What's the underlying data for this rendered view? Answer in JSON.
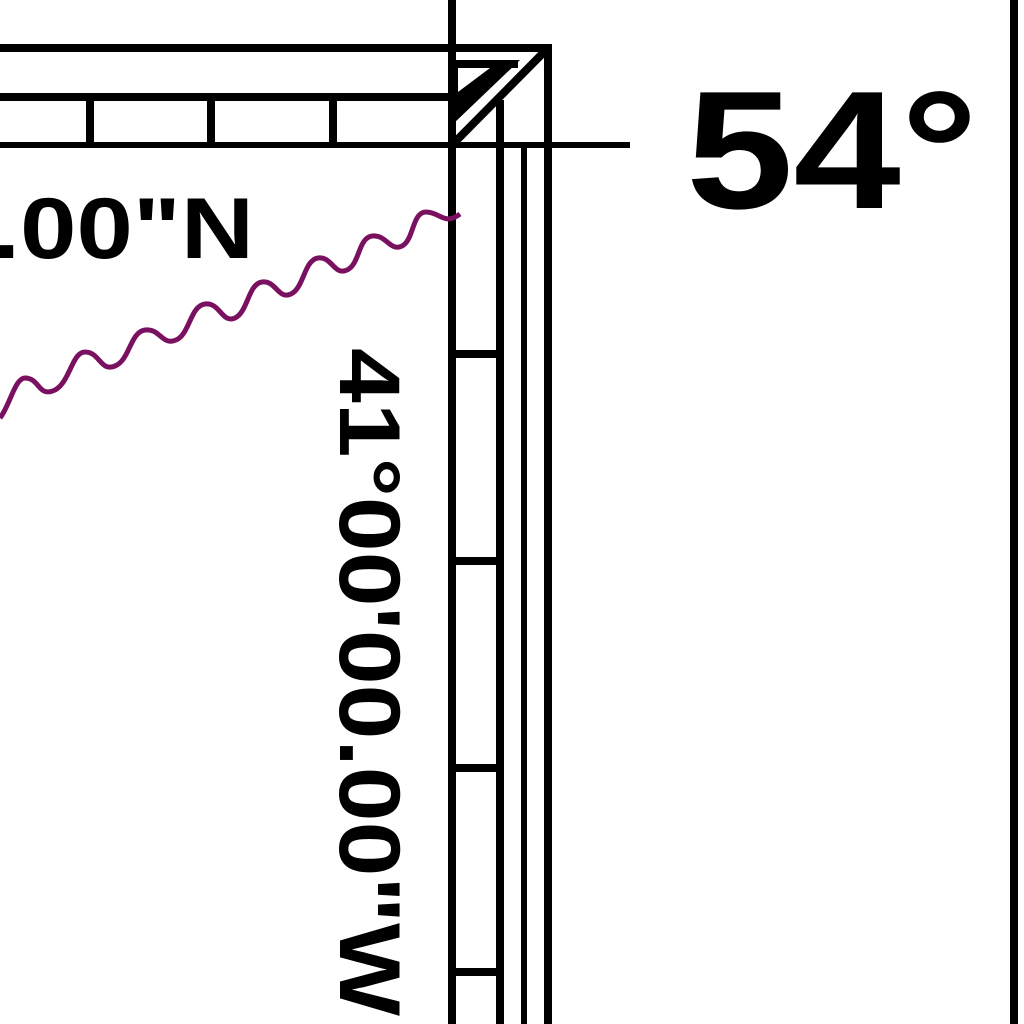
{
  "chart": {
    "corner_latitude_label": "54°",
    "latitude_label_partial": ".00\"N",
    "longitude_label": "41°00'00.00\"W"
  },
  "colors": {
    "frame": "#000000",
    "wavy_line": "#7a1060",
    "background": "#ffffff"
  }
}
